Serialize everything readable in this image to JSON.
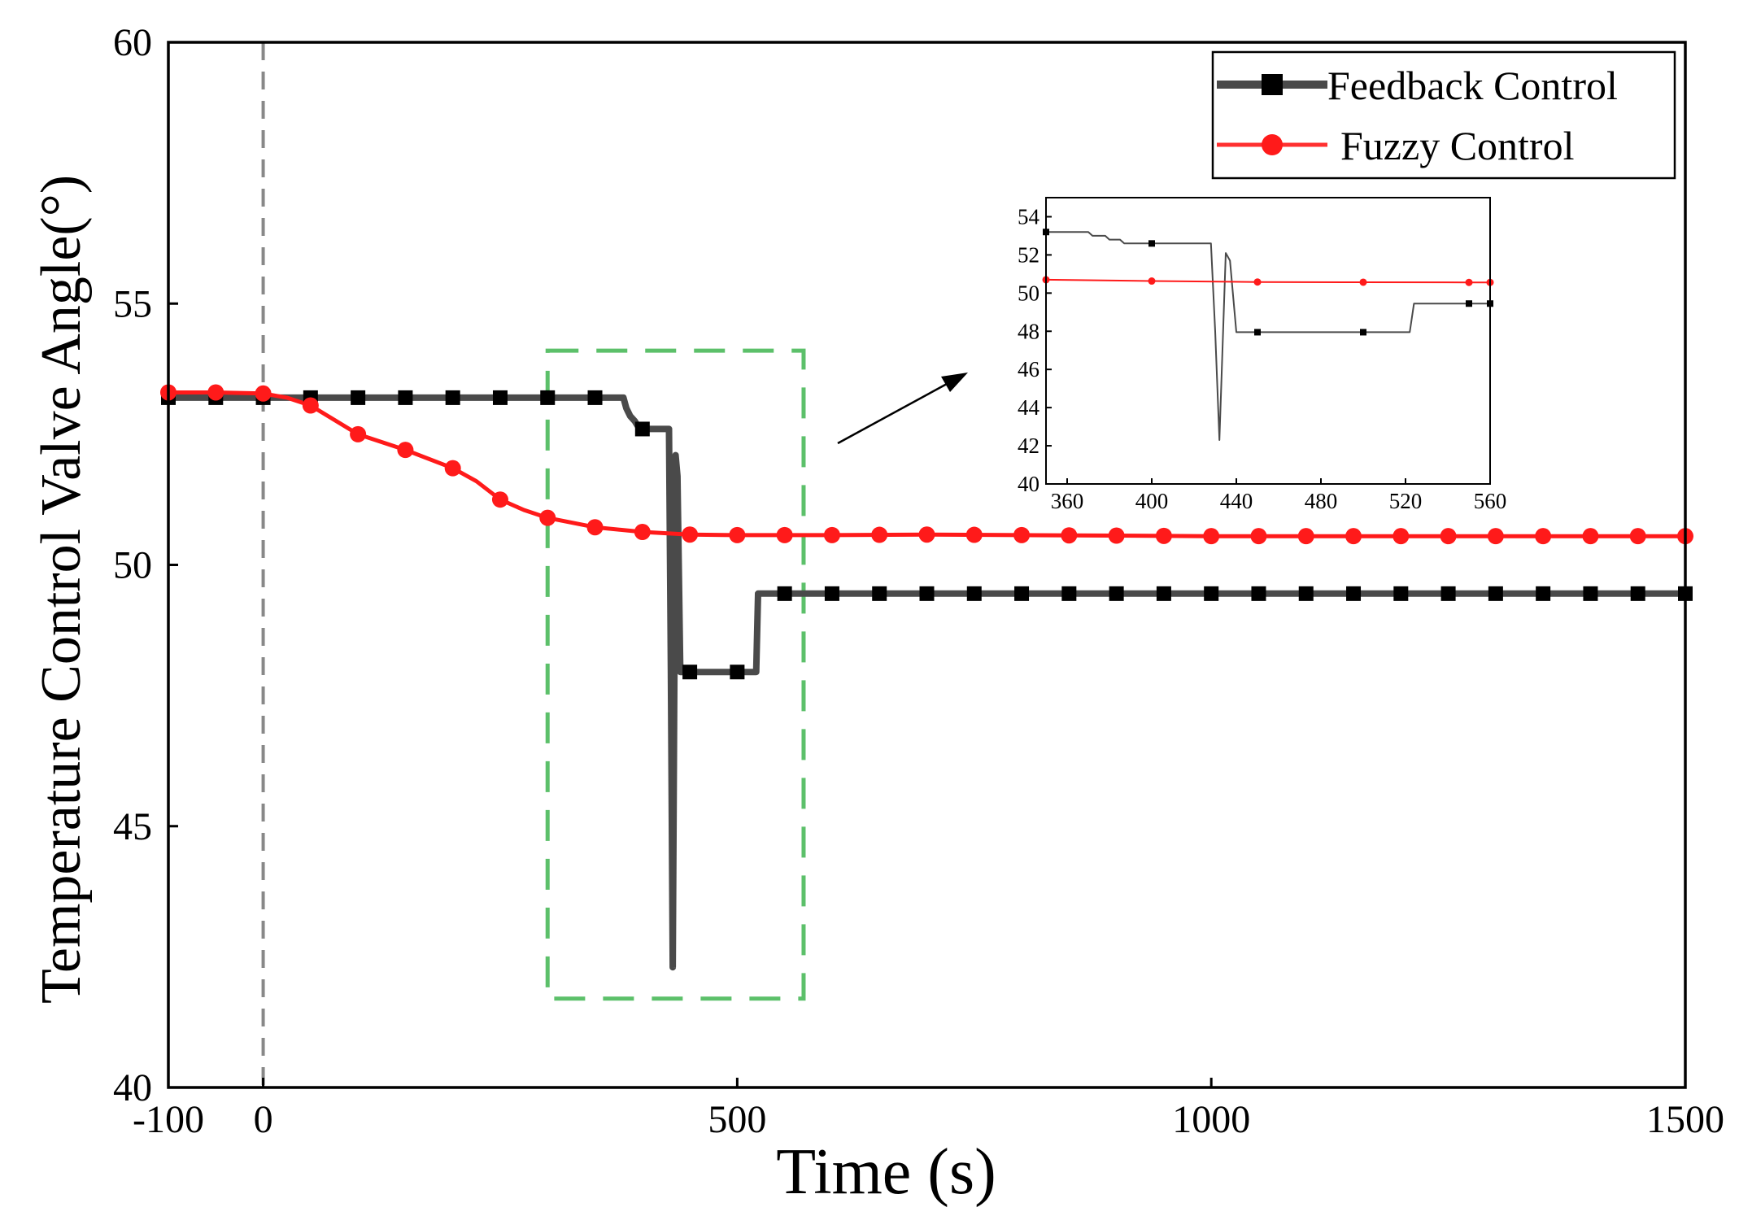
{
  "chart_data": [
    {
      "type": "line",
      "xlabel": "Time (s)",
      "ylabel": "Temperature Control Valve Angle(°)",
      "xlim": [
        -100,
        1500
      ],
      "ylim": [
        40,
        60
      ],
      "xticks": [
        -100,
        0,
        500,
        1000,
        1500
      ],
      "yticks": [
        40,
        45,
        50,
        55,
        60
      ],
      "legend_position": "top-right",
      "annotations": {
        "reference_line_x": 0,
        "zoom_box": {
          "x_range": [
            300,
            570
          ],
          "y_range": [
            41.7,
            54.1
          ]
        }
      },
      "series": [
        {
          "name": "Feedback Control",
          "color": "#4a4a4a",
          "marker": "square",
          "points": [
            [
              -100,
              53.2
            ],
            [
              380,
              53.2
            ],
            [
              383,
              53.0
            ],
            [
              387,
              52.85
            ],
            [
              392,
              52.75
            ],
            [
              397,
              52.6
            ],
            [
              428,
              52.6
            ],
            [
              430,
              48.0
            ],
            [
              432,
              42.3
            ],
            [
              435,
              52.1
            ],
            [
              437,
              51.7
            ],
            [
              440,
              47.95
            ],
            [
              520,
              47.95
            ],
            [
              522,
              49.45
            ],
            [
              1500,
              49.45
            ]
          ],
          "marker_x": [
            -100,
            -50,
            0,
            50,
            100,
            150,
            200,
            250,
            300,
            350,
            400,
            450,
            500,
            550,
            600,
            650,
            700,
            750,
            800,
            850,
            900,
            950,
            1000,
            1050,
            1100,
            1150,
            1200,
            1250,
            1300,
            1350,
            1400,
            1450,
            1500
          ]
        },
        {
          "name": "Fuzzy  Control",
          "color": "#ff1a1a",
          "marker": "circle",
          "points": [
            [
              -100,
              53.3
            ],
            [
              -50,
              53.3
            ],
            [
              0,
              53.28
            ],
            [
              25,
              53.2
            ],
            [
              50,
              53.05
            ],
            [
              100,
              52.5
            ],
            [
              150,
              52.2
            ],
            [
              200,
              51.85
            ],
            [
              225,
              51.6
            ],
            [
              250,
              51.25
            ],
            [
              275,
              51.05
            ],
            [
              300,
              50.9
            ],
            [
              350,
              50.72
            ],
            [
              400,
              50.63
            ],
            [
              450,
              50.58
            ],
            [
              500,
              50.57
            ],
            [
              600,
              50.57
            ],
            [
              700,
              50.58
            ],
            [
              800,
              50.57
            ],
            [
              900,
              50.56
            ],
            [
              1000,
              50.55
            ],
            [
              1100,
              50.55
            ],
            [
              1200,
              50.55
            ],
            [
              1300,
              50.55
            ],
            [
              1400,
              50.55
            ],
            [
              1500,
              50.55
            ]
          ],
          "marker_x": [
            -100,
            -50,
            0,
            50,
            100,
            150,
            200,
            250,
            300,
            350,
            400,
            450,
            500,
            550,
            600,
            650,
            700,
            750,
            800,
            850,
            900,
            950,
            1000,
            1050,
            1100,
            1150,
            1200,
            1250,
            1300,
            1350,
            1400,
            1450,
            1500
          ]
        }
      ]
    },
    {
      "type": "line",
      "role": "inset",
      "xlim": [
        350,
        560
      ],
      "ylim": [
        40,
        55
      ],
      "xticks": [
        360,
        400,
        440,
        480,
        520,
        560
      ],
      "yticks": [
        40,
        42,
        44,
        46,
        48,
        50,
        52,
        54
      ],
      "series": [
        {
          "name": "Feedback Control",
          "color": "#4a4a4a",
          "marker": "square",
          "points": [
            [
              350,
              53.2
            ],
            [
              370,
              53.2
            ],
            [
              372,
              53.0
            ],
            [
              378,
              53.0
            ],
            [
              380,
              52.8
            ],
            [
              385,
              52.8
            ],
            [
              387,
              52.6
            ],
            [
              428,
              52.6
            ],
            [
              430,
              48.0
            ],
            [
              432,
              42.3
            ],
            [
              435,
              52.1
            ],
            [
              437,
              51.7
            ],
            [
              440,
              47.95
            ],
            [
              522,
              47.95
            ],
            [
              524,
              49.45
            ],
            [
              560,
              49.45
            ]
          ],
          "marker_x": [
            350,
            400,
            450,
            500,
            550,
            560
          ]
        },
        {
          "name": "Fuzzy  Control",
          "color": "#ff1a1a",
          "marker": "circle",
          "points": [
            [
              350,
              50.7
            ],
            [
              400,
              50.63
            ],
            [
              450,
              50.58
            ],
            [
              500,
              50.57
            ],
            [
              550,
              50.56
            ],
            [
              560,
              50.56
            ]
          ],
          "marker_x": [
            350,
            400,
            450,
            500,
            550,
            560
          ]
        }
      ]
    }
  ]
}
